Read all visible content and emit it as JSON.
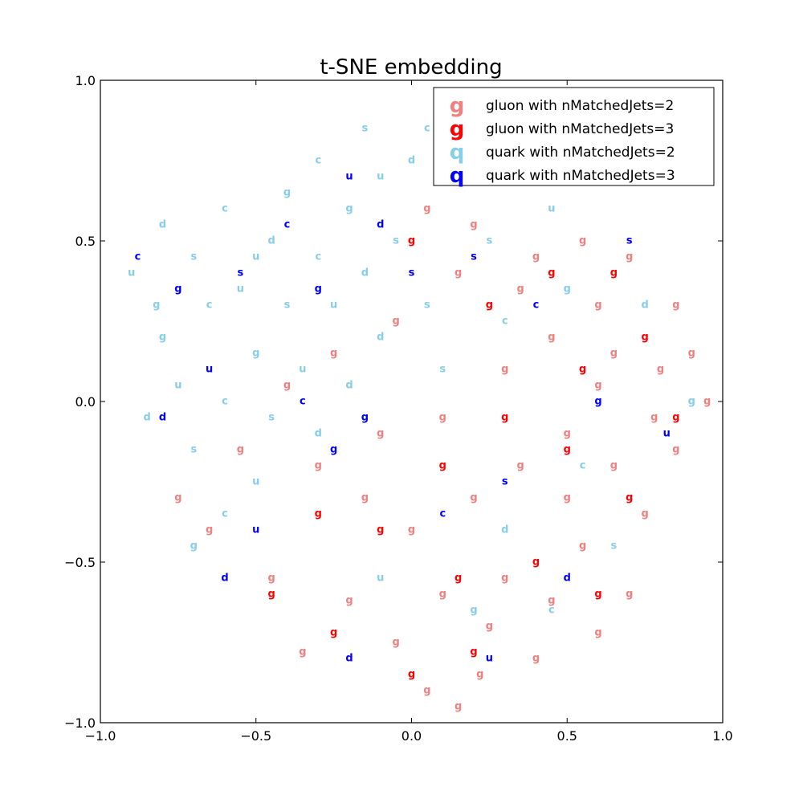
{
  "chart_data": {
    "type": "scatter",
    "title": "t-SNE embedding",
    "xlabel": "",
    "ylabel": "",
    "xlim": [
      -1.0,
      1.0
    ],
    "ylim": [
      -1.0,
      1.0
    ],
    "xticks": [
      "−1.0",
      "−0.5",
      "0.0",
      "0.5",
      "1.0"
    ],
    "xtick_values": [
      -1.0,
      -0.5,
      0.0,
      0.5,
      1.0
    ],
    "yticks": [
      "−1.0",
      "−0.5",
      "0.0",
      "0.5",
      "1.0"
    ],
    "ytick_values": [
      -1.0,
      -0.5,
      0.0,
      0.5,
      1.0
    ],
    "grid": false,
    "legend_position": "top-right",
    "point_labels": [
      "g",
      "u",
      "d",
      "s",
      "c"
    ],
    "series": [
      {
        "name": "gluon with nMatchedJets=2",
        "marker": "g",
        "color": "#f08080",
        "region": "right and lower half, densest for x > 0",
        "points": [
          [
            0.05,
            -0.9
          ],
          [
            0.15,
            -0.95
          ],
          [
            0.22,
            -0.85
          ],
          [
            -0.35,
            -0.78
          ],
          [
            -0.2,
            -0.62
          ],
          [
            0.1,
            -0.6
          ],
          [
            0.3,
            -0.55
          ],
          [
            0.45,
            -0.62
          ],
          [
            0.6,
            -0.72
          ],
          [
            0.7,
            -0.6
          ],
          [
            0.55,
            -0.45
          ],
          [
            0.75,
            -0.35
          ],
          [
            0.65,
            -0.2
          ],
          [
            0.85,
            -0.15
          ],
          [
            0.95,
            0.0
          ],
          [
            0.8,
            0.1
          ],
          [
            0.6,
            0.05
          ],
          [
            0.5,
            -0.1
          ],
          [
            0.35,
            -0.2
          ],
          [
            0.2,
            -0.3
          ],
          [
            0.0,
            -0.4
          ],
          [
            -0.15,
            -0.3
          ],
          [
            -0.3,
            -0.2
          ],
          [
            -0.1,
            -0.1
          ],
          [
            0.1,
            -0.05
          ],
          [
            0.3,
            0.1
          ],
          [
            0.45,
            0.2
          ],
          [
            0.6,
            0.3
          ],
          [
            0.7,
            0.45
          ],
          [
            0.85,
            0.3
          ],
          [
            0.55,
            0.5
          ],
          [
            0.4,
            0.45
          ],
          [
            0.2,
            0.55
          ],
          [
            0.05,
            0.6
          ],
          [
            0.15,
            0.4
          ],
          [
            -0.05,
            0.25
          ],
          [
            -0.25,
            0.15
          ],
          [
            -0.4,
            0.05
          ],
          [
            -0.55,
            -0.15
          ],
          [
            -0.65,
            -0.4
          ],
          [
            -0.75,
            -0.3
          ],
          [
            -0.45,
            -0.55
          ],
          [
            0.25,
            -0.7
          ],
          [
            0.4,
            -0.8
          ],
          [
            -0.05,
            -0.75
          ],
          [
            0.65,
            0.15
          ],
          [
            0.9,
            0.15
          ],
          [
            0.78,
            -0.05
          ],
          [
            0.5,
            -0.3
          ],
          [
            0.35,
            0.35
          ]
        ]
      },
      {
        "name": "gluon with nMatchedJets=3",
        "marker": "g",
        "color": "#ff0000",
        "region": "scattered through the right and lower half",
        "points": [
          [
            0.0,
            -0.85
          ],
          [
            0.2,
            -0.78
          ],
          [
            -0.25,
            -0.72
          ],
          [
            0.15,
            -0.55
          ],
          [
            0.4,
            -0.5
          ],
          [
            0.6,
            -0.6
          ],
          [
            0.7,
            -0.3
          ],
          [
            0.5,
            -0.15
          ],
          [
            0.85,
            -0.05
          ],
          [
            0.75,
            0.2
          ],
          [
            0.55,
            0.1
          ],
          [
            0.3,
            -0.05
          ],
          [
            0.1,
            -0.2
          ],
          [
            -0.1,
            -0.4
          ],
          [
            -0.3,
            -0.35
          ],
          [
            0.25,
            0.3
          ],
          [
            0.45,
            0.4
          ],
          [
            0.0,
            0.5
          ],
          [
            0.65,
            0.4
          ],
          [
            -0.45,
            -0.6
          ]
        ]
      },
      {
        "name": "quark with nMatchedJets=2",
        "marker": "q",
        "color": "#87ceeb",
        "region": "upper-left half, densest for x < 0",
        "points": [
          [
            -0.9,
            0.4
          ],
          [
            -0.8,
            0.55
          ],
          [
            -0.7,
            0.45
          ],
          [
            -0.65,
            0.3
          ],
          [
            -0.8,
            0.2
          ],
          [
            -0.75,
            0.05
          ],
          [
            -0.85,
            -0.05
          ],
          [
            -0.7,
            -0.15
          ],
          [
            -0.6,
            0.0
          ],
          [
            -0.5,
            0.15
          ],
          [
            -0.55,
            0.35
          ],
          [
            -0.45,
            0.5
          ],
          [
            -0.4,
            0.3
          ],
          [
            -0.3,
            0.45
          ],
          [
            -0.2,
            0.6
          ],
          [
            -0.1,
            0.7
          ],
          [
            0.0,
            0.75
          ],
          [
            -0.15,
            0.85
          ],
          [
            -0.3,
            0.75
          ],
          [
            -0.4,
            0.65
          ],
          [
            -0.25,
            0.3
          ],
          [
            -0.15,
            0.4
          ],
          [
            -0.05,
            0.5
          ],
          [
            0.05,
            0.85
          ],
          [
            0.1,
            0.7
          ],
          [
            -0.35,
            0.1
          ],
          [
            -0.2,
            0.05
          ],
          [
            -0.45,
            -0.05
          ],
          [
            -0.6,
            -0.35
          ],
          [
            -0.7,
            -0.45
          ],
          [
            -0.5,
            -0.25
          ],
          [
            -0.3,
            -0.1
          ],
          [
            0.05,
            0.3
          ],
          [
            0.3,
            0.25
          ],
          [
            0.5,
            0.35
          ],
          [
            0.45,
            0.6
          ],
          [
            0.75,
            0.3
          ],
          [
            0.65,
            -0.45
          ],
          [
            0.45,
            -0.65
          ],
          [
            0.2,
            -0.65
          ],
          [
            -0.1,
            -0.55
          ],
          [
            0.3,
            -0.4
          ],
          [
            0.1,
            0.1
          ],
          [
            -0.6,
            0.6
          ],
          [
            -0.82,
            0.3
          ],
          [
            -0.5,
            0.45
          ],
          [
            -0.1,
            0.2
          ],
          [
            0.25,
            0.5
          ],
          [
            0.55,
            -0.2
          ],
          [
            0.9,
            0.0
          ]
        ]
      },
      {
        "name": "quark with nMatchedJets=3",
        "marker": "q",
        "color": "#0000ff",
        "region": "scattered, mostly upper-left half",
        "points": [
          [
            -0.88,
            0.45
          ],
          [
            -0.75,
            0.35
          ],
          [
            -0.65,
            0.1
          ],
          [
            -0.8,
            -0.05
          ],
          [
            -0.55,
            0.4
          ],
          [
            -0.4,
            0.55
          ],
          [
            -0.3,
            0.35
          ],
          [
            -0.2,
            0.7
          ],
          [
            -0.1,
            0.55
          ],
          [
            0.0,
            0.4
          ],
          [
            -0.35,
            0.0
          ],
          [
            -0.25,
            -0.15
          ],
          [
            -0.5,
            -0.4
          ],
          [
            -0.6,
            -0.55
          ],
          [
            0.2,
            0.45
          ],
          [
            0.4,
            0.3
          ],
          [
            0.6,
            0.0
          ],
          [
            0.82,
            -0.1
          ],
          [
            0.5,
            -0.55
          ],
          [
            0.3,
            -0.25
          ],
          [
            0.1,
            -0.35
          ],
          [
            -0.15,
            -0.05
          ],
          [
            0.25,
            -0.8
          ],
          [
            -0.2,
            -0.8
          ],
          [
            0.7,
            0.5
          ]
        ]
      }
    ]
  }
}
